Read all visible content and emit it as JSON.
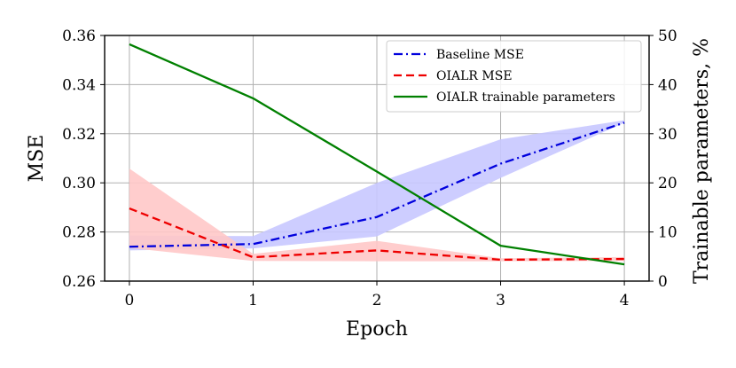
{
  "chart_data": {
    "type": "line",
    "x": [
      0,
      1,
      2,
      3,
      4
    ],
    "xlabel": "Epoch",
    "ylabel": "MSE",
    "y2label": "Trainable parameters, %",
    "xlim": [
      -0.2,
      4.2
    ],
    "ylim": [
      0.26,
      0.36
    ],
    "y2lim": [
      0,
      50
    ],
    "x_ticks": [
      "0",
      "1",
      "2",
      "3",
      "4"
    ],
    "y_ticks": [
      "0.26",
      "0.28",
      "0.30",
      "0.32",
      "0.34",
      "0.36"
    ],
    "y2_ticks": [
      "0",
      "10",
      "20",
      "30",
      "40",
      "50"
    ],
    "grid": true,
    "legend_position": "top-right",
    "series": [
      {
        "name": "Baseline MSE",
        "axis": "left",
        "color": "#0000dd",
        "style": "dash-dot",
        "values": [
          0.274,
          0.2751,
          0.2861,
          0.3078,
          0.3245
        ],
        "band_lower": [
          0.2725,
          0.2733,
          0.2782,
          0.302,
          0.3245
        ],
        "band_upper": [
          0.2786,
          0.2783,
          0.3,
          0.3177,
          0.3255
        ],
        "band_color": "#c8c8ff"
      },
      {
        "name": "OIALR MSE",
        "axis": "left",
        "color": "#ee0000",
        "style": "dashed",
        "values": [
          0.2896,
          0.2697,
          0.2725,
          0.2687,
          0.269
        ],
        "band_lower": [
          0.2735,
          0.2682,
          0.2681,
          0.2681,
          0.2682
        ],
        "band_upper": [
          0.3058,
          0.2711,
          0.2764,
          0.2693,
          0.2698
        ],
        "band_color": "#ffc8c8"
      },
      {
        "name": "OIALR trainable parameters",
        "axis": "right",
        "color": "#008000",
        "style": "solid",
        "values": [
          48.2,
          37.2,
          22.3,
          7.2,
          3.4
        ]
      }
    ]
  }
}
